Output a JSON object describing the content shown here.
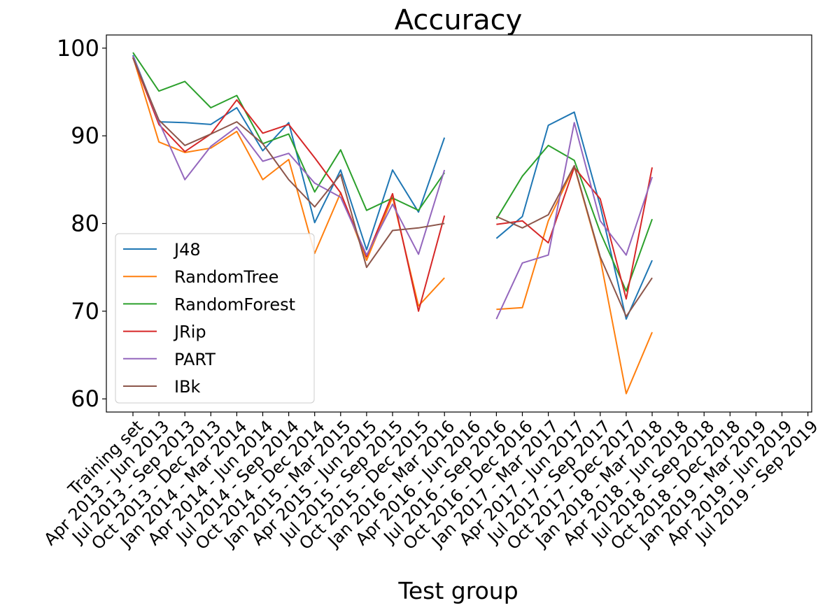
{
  "chart_data": {
    "type": "line",
    "title": "Accuracy",
    "xlabel": "Test group",
    "ylabel": "",
    "ylim": [
      58.5,
      101.5
    ],
    "yticks": [
      60,
      70,
      80,
      90,
      100
    ],
    "grid": false,
    "legend_position": "lower-left",
    "categories": [
      "Training set",
      "Apr 2013 - Jun 2013",
      "Jul 2013 - Sep 2013",
      "Oct 2013 - Dec 2013",
      "Jan 2014 - Mar 2014",
      "Apr 2014 - Jun 2014",
      "Jul 2014 - Sep 2014",
      "Oct 2014 - Dec 2014",
      "Jan 2015 - Mar 2015",
      "Apr 2015 - Jun 2015",
      "Jul 2015 - Sep 2015",
      "Oct 2015 - Dec 2015",
      "Jan 2016 - Mar 2016",
      "Apr 2016 - Jun 2016",
      "Jul 2016 - Sep 2016",
      "Oct 2016 - Dec 2016",
      "Jan 2017 - Mar 2017",
      "Apr 2017 - Jun 2017",
      "Jul 2017 - Sep 2017",
      "Oct 2017 - Dec 2017",
      "Jan 2018 - Mar 2018",
      "Apr 2018 - Jun 2018",
      "Jul 2018 - Sep 2018",
      "Oct 2018 - Dec 2018",
      "Jan 2019 - Mar 2019",
      "Apr 2019 - Jun 2019",
      "Jul 2019 - Sep 2019"
    ],
    "series": [
      {
        "name": "J48",
        "color": "#1f77b4",
        "values": [
          99.2,
          91.6,
          91.5,
          91.3,
          93.2,
          88.3,
          91.5,
          80.1,
          86.1,
          77.0,
          86.1,
          81.3,
          89.8,
          null,
          78.3,
          80.8,
          91.2,
          92.7,
          82.0,
          69.1,
          75.8,
          null,
          null,
          null,
          null,
          null,
          null
        ]
      },
      {
        "name": "RandomTree",
        "color": "#ff7f0e",
        "values": [
          99.0,
          89.3,
          88.1,
          88.6,
          90.5,
          85.0,
          87.3,
          76.6,
          83.5,
          75.8,
          83.0,
          70.6,
          73.8,
          null,
          70.2,
          70.4,
          80.3,
          86.5,
          76.0,
          60.6,
          67.6,
          null,
          null,
          null,
          null,
          null,
          null
        ]
      },
      {
        "name": "RandomForest",
        "color": "#2ca02c",
        "values": [
          99.5,
          95.1,
          96.2,
          93.2,
          94.6,
          89.1,
          90.2,
          83.6,
          88.4,
          81.5,
          82.9,
          81.5,
          85.8,
          null,
          80.5,
          85.4,
          88.9,
          87.2,
          79.0,
          72.3,
          80.5,
          null,
          null,
          null,
          null,
          null,
          null
        ]
      },
      {
        "name": "JRip",
        "color": "#d62728",
        "values": [
          98.9,
          91.3,
          88.2,
          90.2,
          94.1,
          90.3,
          91.3,
          87.5,
          83.5,
          76.2,
          83.4,
          70.0,
          80.9,
          null,
          79.9,
          80.3,
          77.8,
          86.4,
          82.8,
          71.4,
          86.4,
          null,
          null,
          null,
          null,
          null,
          null
        ]
      },
      {
        "name": "PART",
        "color": "#9467bd",
        "values": [
          99.1,
          91.6,
          85.0,
          88.8,
          91.0,
          87.1,
          88.0,
          84.6,
          83.0,
          76.4,
          82.2,
          76.5,
          86.1,
          null,
          69.1,
          75.5,
          76.4,
          91.5,
          80.3,
          76.4,
          85.3,
          null,
          null,
          null,
          null,
          null,
          null
        ]
      },
      {
        "name": "IBk",
        "color": "#8c564b",
        "values": [
          98.9,
          91.8,
          88.9,
          90.2,
          91.6,
          89.1,
          85.0,
          81.9,
          85.6,
          75.0,
          79.2,
          79.5,
          80.0,
          null,
          80.8,
          79.5,
          81.0,
          86.6,
          76.2,
          69.4,
          73.8,
          null,
          null,
          null,
          null,
          null,
          null
        ]
      }
    ]
  }
}
